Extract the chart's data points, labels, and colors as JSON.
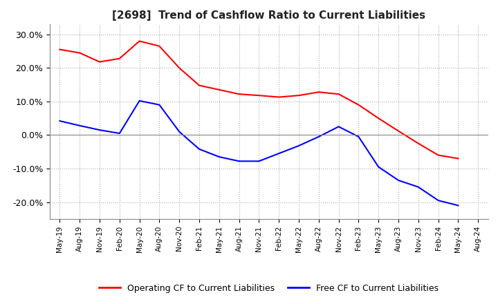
{
  "title": "[2698]  Trend of Cashflow Ratio to Current Liabilities",
  "title_fontsize": 11,
  "xlabel": "",
  "ylabel": "",
  "ylim": [
    -0.25,
    0.33
  ],
  "yticks": [
    -0.2,
    -0.1,
    0.0,
    0.1,
    0.2,
    0.3
  ],
  "ytick_labels": [
    "-20.0%",
    "-10.0%",
    "0.0%",
    "10.0%",
    "20.0%",
    "30.0%"
  ],
  "background_color": "#ffffff",
  "plot_bg_color": "#ffffff",
  "grid_color": "#aaaaaa",
  "zero_line_color": "#888888",
  "x_labels": [
    "May-19",
    "Aug-19",
    "Nov-19",
    "Feb-20",
    "May-20",
    "Aug-20",
    "Nov-20",
    "Feb-21",
    "May-21",
    "Aug-21",
    "Nov-21",
    "Feb-22",
    "May-22",
    "Aug-22",
    "Nov-22",
    "Feb-23",
    "May-23",
    "Aug-23",
    "Nov-23",
    "Feb-24",
    "May-24",
    "Aug-24"
  ],
  "operating_cf": [
    0.255,
    0.245,
    0.218,
    0.228,
    0.28,
    0.265,
    0.2,
    0.148,
    0.135,
    0.122,
    0.118,
    0.113,
    0.118,
    0.128,
    0.122,
    0.09,
    0.05,
    0.012,
    -0.025,
    -0.06,
    -0.07,
    null
  ],
  "free_cf": [
    0.042,
    0.028,
    0.015,
    0.005,
    0.102,
    0.09,
    0.01,
    -0.042,
    -0.065,
    -0.078,
    -0.078,
    -0.055,
    -0.032,
    -0.005,
    0.025,
    -0.005,
    -0.095,
    -0.135,
    -0.155,
    -0.195,
    -0.21,
    null
  ],
  "operating_color": "#ff0000",
  "free_color": "#0000ff",
  "line_width": 1.5,
  "legend_labels": [
    "Operating CF to Current Liabilities",
    "Free CF to Current Liabilities"
  ]
}
